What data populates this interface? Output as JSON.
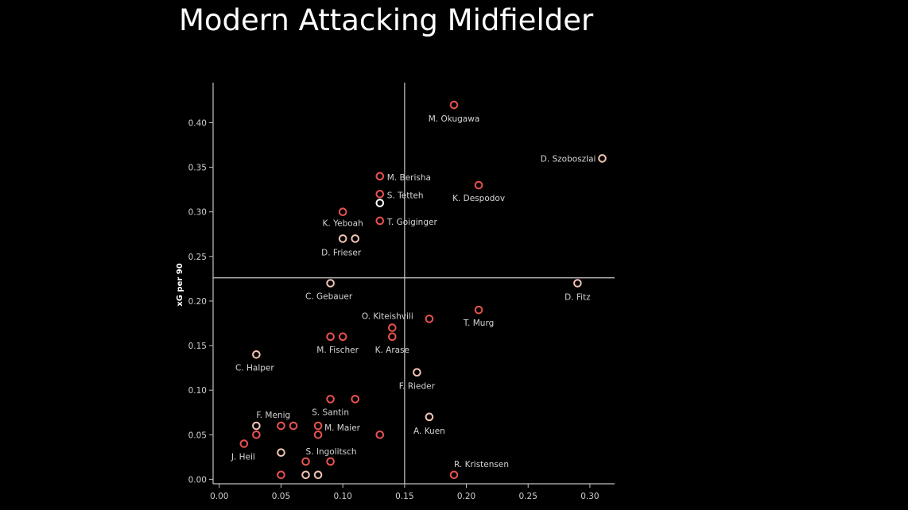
{
  "title": "Modern Attacking Midfielder",
  "chart_data": {
    "type": "scatter",
    "title": "Modern Attacking Midfielder",
    "xlabel": "",
    "ylabel": "xG per 90",
    "xlim": [
      -0.005,
      0.32
    ],
    "ylim": [
      -0.005,
      0.445
    ],
    "x_ticks": [
      "0.00",
      "0.05",
      "0.10",
      "0.15",
      "0.20",
      "0.25",
      "0.30"
    ],
    "y_ticks": [
      "0.00",
      "0.05",
      "0.10",
      "0.15",
      "0.20",
      "0.25",
      "0.30",
      "0.35",
      "0.40"
    ],
    "reference_lines": {
      "x": 0.15,
      "y": 0.226
    },
    "colors": {
      "marker_red": "#e8524f",
      "marker_light": "#f2c4b4",
      "axis": "#bfbfbf",
      "background": "#000000"
    },
    "points": [
      {
        "x": 0.19,
        "y": 0.42,
        "label": "M. Okugawa",
        "style": "red"
      },
      {
        "x": 0.31,
        "y": 0.36,
        "label": "D. Szoboszlai",
        "style": "light"
      },
      {
        "x": 0.13,
        "y": 0.34,
        "label": "M. Berisha",
        "style": "red"
      },
      {
        "x": 0.21,
        "y": 0.33,
        "label": "K. Despodov",
        "style": "red"
      },
      {
        "x": 0.13,
        "y": 0.32,
        "label": "S. Tetteh",
        "style": "red"
      },
      {
        "x": 0.13,
        "y": 0.31,
        "label": "",
        "style": "white"
      },
      {
        "x": 0.1,
        "y": 0.3,
        "label": "K. Yeboah",
        "style": "red"
      },
      {
        "x": 0.13,
        "y": 0.29,
        "label": "T. Goiginger",
        "style": "red"
      },
      {
        "x": 0.1,
        "y": 0.27,
        "label": "D. Frieser",
        "style": "light"
      },
      {
        "x": 0.11,
        "y": 0.27,
        "label": "",
        "style": "light"
      },
      {
        "x": 0.09,
        "y": 0.22,
        "label": "C. Gebauer",
        "style": "light"
      },
      {
        "x": 0.29,
        "y": 0.22,
        "label": "D. Fitz",
        "style": "light"
      },
      {
        "x": 0.21,
        "y": 0.19,
        "label": "T. Murg",
        "style": "red"
      },
      {
        "x": 0.17,
        "y": 0.18,
        "label": "",
        "style": "red"
      },
      {
        "x": 0.14,
        "y": 0.17,
        "label": "O. Kiteishvili",
        "style": "red"
      },
      {
        "x": 0.14,
        "y": 0.16,
        "label": "K. Arase",
        "style": "red"
      },
      {
        "x": 0.09,
        "y": 0.16,
        "label": "M. Fischer",
        "style": "red"
      },
      {
        "x": 0.1,
        "y": 0.16,
        "label": "",
        "style": "red"
      },
      {
        "x": 0.03,
        "y": 0.14,
        "label": "C. Halper",
        "style": "light"
      },
      {
        "x": 0.16,
        "y": 0.12,
        "label": "F. Rieder",
        "style": "light"
      },
      {
        "x": 0.09,
        "y": 0.09,
        "label": "S. Santin",
        "style": "red"
      },
      {
        "x": 0.11,
        "y": 0.09,
        "label": "",
        "style": "red"
      },
      {
        "x": 0.17,
        "y": 0.07,
        "label": "A. Kuen",
        "style": "light"
      },
      {
        "x": 0.03,
        "y": 0.06,
        "label": "F. Menig",
        "style": "light"
      },
      {
        "x": 0.05,
        "y": 0.06,
        "label": "",
        "style": "red"
      },
      {
        "x": 0.06,
        "y": 0.06,
        "label": "",
        "style": "red"
      },
      {
        "x": 0.08,
        "y": 0.06,
        "label": "M. Maier",
        "style": "red"
      },
      {
        "x": 0.03,
        "y": 0.05,
        "label": "",
        "style": "red"
      },
      {
        "x": 0.08,
        "y": 0.05,
        "label": "",
        "style": "red"
      },
      {
        "x": 0.13,
        "y": 0.05,
        "label": "",
        "style": "red"
      },
      {
        "x": 0.02,
        "y": 0.04,
        "label": "J. Heil",
        "style": "red"
      },
      {
        "x": 0.05,
        "y": 0.03,
        "label": "",
        "style": "light"
      },
      {
        "x": 0.07,
        "y": 0.02,
        "label": "S. Ingolitsch",
        "style": "red"
      },
      {
        "x": 0.09,
        "y": 0.02,
        "label": "",
        "style": "red"
      },
      {
        "x": 0.05,
        "y": 0.005,
        "label": "",
        "style": "red"
      },
      {
        "x": 0.07,
        "y": 0.005,
        "label": "",
        "style": "light"
      },
      {
        "x": 0.08,
        "y": 0.005,
        "label": "",
        "style": "light"
      },
      {
        "x": 0.19,
        "y": 0.005,
        "label": "R. Kristensen",
        "style": "red"
      }
    ]
  }
}
